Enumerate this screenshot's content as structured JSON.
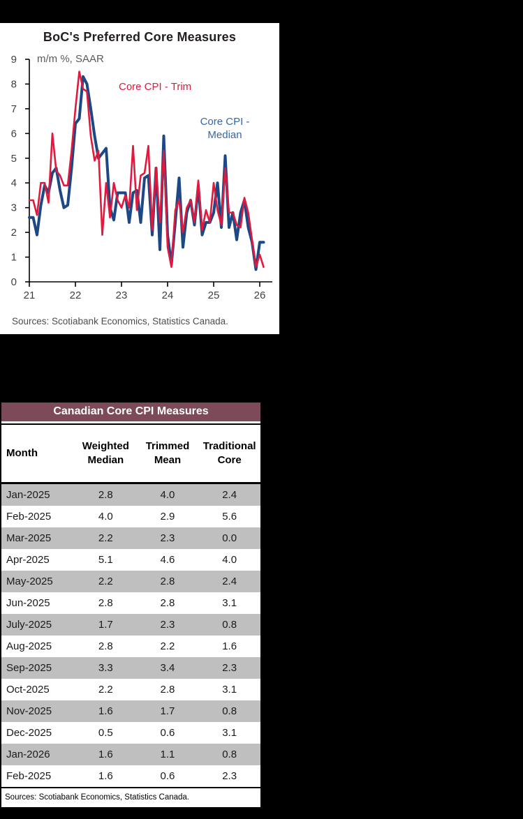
{
  "chart": {
    "title": "BoC's Preferred Core Measures",
    "subtitle": "m/m %, SAAR",
    "sources": "Sources: Scotiabank Economics, Statistics Canada.",
    "series_labels": {
      "trim": "Core CPI - Trim",
      "median": "Core CPI -\nMedian"
    }
  },
  "chart_data": {
    "type": "line",
    "title": "BoC's Preferred Core Measures",
    "ylabel_note": "m/m %, SAAR",
    "x_start": "2021-01",
    "x_end": "2026-02",
    "x_tick_labels": [
      "21",
      "22",
      "23",
      "24",
      "25",
      "26"
    ],
    "y_ticks": [
      0,
      1,
      2,
      3,
      4,
      5,
      6,
      7,
      8,
      9
    ],
    "ylim": [
      0,
      9
    ],
    "grid": false,
    "legend_position": "inline-annotations",
    "series": [
      {
        "name": "Core CPI - Median",
        "color": "#1d4886",
        "values": [
          2.6,
          2.6,
          1.9,
          3.1,
          3.9,
          3.6,
          4.4,
          4.6,
          3.7,
          3.0,
          3.1,
          4.6,
          6.4,
          6.6,
          8.3,
          8.0,
          7.0,
          5.9,
          5.0,
          5.2,
          5.4,
          3.0,
          2.5,
          3.6,
          3.6,
          3.6,
          2.4,
          3.6,
          3.7,
          2.4,
          4.2,
          4.3,
          1.9,
          4.6,
          1.3,
          5.9,
          1.9,
          0.7,
          2.4,
          4.2,
          1.4,
          2.8,
          3.3,
          2.3,
          3.9,
          1.9,
          2.4,
          2.4,
          2.8,
          4.0,
          2.2,
          5.1,
          2.2,
          2.8,
          1.7,
          2.8,
          3.3,
          2.2,
          1.6,
          0.5,
          1.6,
          1.6
        ]
      },
      {
        "name": "Core CPI - Trim",
        "color": "#e2183d",
        "values": [
          3.3,
          3.3,
          2.7,
          4.0,
          4.0,
          3.2,
          6.0,
          4.5,
          4.3,
          3.9,
          3.9,
          5.3,
          7.0,
          8.5,
          7.8,
          7.7,
          5.9,
          4.9,
          5.3,
          1.9,
          4.0,
          2.6,
          4.0,
          3.3,
          3.0,
          3.5,
          3.0,
          5.5,
          2.9,
          4.3,
          4.4,
          5.5,
          2.1,
          4.6,
          2.4,
          5.3,
          1.4,
          0.6,
          2.9,
          3.3,
          2.0,
          3.0,
          3.3,
          2.4,
          4.1,
          2.1,
          2.9,
          2.4,
          4.0,
          2.9,
          2.3,
          4.6,
          2.8,
          2.8,
          2.3,
          2.2,
          3.4,
          2.8,
          1.7,
          0.6,
          1.1,
          0.6
        ]
      }
    ]
  },
  "table": {
    "title": "Canadian Core CPI Measures",
    "columns": [
      "Month",
      "Weighted Median",
      "Trimmed Mean",
      "Traditional Core"
    ],
    "rows": [
      {
        "month": "Jan-2025",
        "weighted_median": "2.8",
        "trimmed_mean": "4.0",
        "traditional_core": "2.4"
      },
      {
        "month": "Feb-2025",
        "weighted_median": "4.0",
        "trimmed_mean": "2.9",
        "traditional_core": "5.6"
      },
      {
        "month": "Mar-2025",
        "weighted_median": "2.2",
        "trimmed_mean": "2.3",
        "traditional_core": "0.0"
      },
      {
        "month": "Apr-2025",
        "weighted_median": "5.1",
        "trimmed_mean": "4.6",
        "traditional_core": "4.0"
      },
      {
        "month": "May-2025",
        "weighted_median": "2.2",
        "trimmed_mean": "2.8",
        "traditional_core": "2.4"
      },
      {
        "month": "Jun-2025",
        "weighted_median": "2.8",
        "trimmed_mean": "2.8",
        "traditional_core": "3.1"
      },
      {
        "month": "July-2025",
        "weighted_median": "1.7",
        "trimmed_mean": "2.3",
        "traditional_core": "0.8"
      },
      {
        "month": "Aug-2025",
        "weighted_median": "2.8",
        "trimmed_mean": "2.2",
        "traditional_core": "1.6"
      },
      {
        "month": "Sep-2025",
        "weighted_median": "3.3",
        "trimmed_mean": "3.4",
        "traditional_core": "2.3"
      },
      {
        "month": "Oct-2025",
        "weighted_median": "2.2",
        "trimmed_mean": "2.8",
        "traditional_core": "3.1"
      },
      {
        "month": "Nov-2025",
        "weighted_median": "1.6",
        "trimmed_mean": "1.7",
        "traditional_core": "0.8"
      },
      {
        "month": "Dec-2025",
        "weighted_median": "0.5",
        "trimmed_mean": "0.6",
        "traditional_core": "3.1"
      },
      {
        "month": "Jan-2026",
        "weighted_median": "1.6",
        "trimmed_mean": "1.1",
        "traditional_core": "0.8"
      },
      {
        "month": "Feb-2025",
        "weighted_median": "1.6",
        "trimmed_mean": "0.6",
        "traditional_core": "2.3"
      }
    ],
    "sources": "Sources: Scotiabank Economics, Statistics Canada."
  }
}
